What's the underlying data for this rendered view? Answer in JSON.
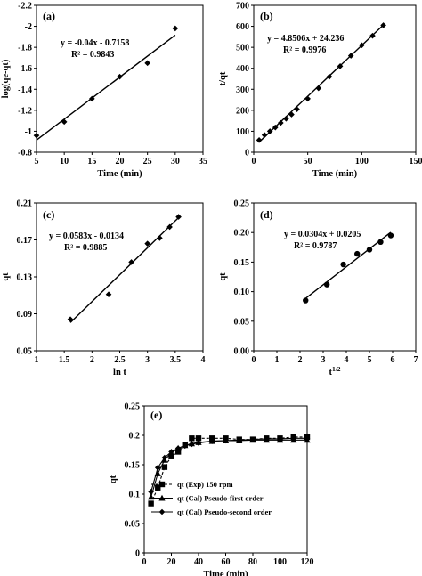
{
  "chart_data": [
    {
      "id": "a",
      "type": "scatter",
      "panel_label": "(a)",
      "xlabel": "Time (min)",
      "ylabel": "log(qe-qt)",
      "xlim": [
        5,
        35
      ],
      "ylim": [
        -0.8,
        -2.2
      ],
      "y_inverted": true,
      "xticks": [
        5,
        10,
        15,
        20,
        25,
        30,
        35
      ],
      "yticks": [
        -0.8,
        -1.0,
        -1.2,
        -1.4,
        -1.6,
        -1.8,
        -2.0,
        -2.2
      ],
      "ytick_labels": [
        "-0.8",
        "-1",
        "-1.2",
        "-1.4",
        "-1.6",
        "-1.8",
        "-2",
        "-2.2"
      ],
      "marker": "diamond",
      "x": [
        5,
        10,
        15,
        20,
        25,
        30
      ],
      "y": [
        -0.96,
        -1.09,
        -1.31,
        -1.52,
        -1.65,
        -1.98
      ],
      "fit": {
        "slope": -0.04,
        "intercept": -0.7158,
        "x_range": [
          5,
          30
        ]
      },
      "equation": "y = -0.04x - 0.7158",
      "r2": "R² = 0.9843"
    },
    {
      "id": "b",
      "type": "scatter",
      "panel_label": "(b)",
      "xlabel": "Time (min)",
      "ylabel": "t/qt",
      "xlim": [
        0,
        150
      ],
      "ylim": [
        0,
        700
      ],
      "xticks": [
        0,
        50,
        100,
        150
      ],
      "yticks": [
        0,
        100,
        200,
        300,
        400,
        500,
        600,
        700
      ],
      "marker": "diamond",
      "x": [
        5,
        10,
        15,
        20,
        25,
        30,
        35,
        40,
        50,
        60,
        70,
        80,
        90,
        100,
        110,
        120
      ],
      "y": [
        58,
        82,
        100,
        118,
        140,
        160,
        180,
        205,
        255,
        305,
        360,
        410,
        460,
        510,
        555,
        605
      ],
      "fit": {
        "slope": 4.8506,
        "intercept": 24.236,
        "x_range": [
          5,
          120
        ]
      },
      "equation": "y = 4.8506x + 24.236",
      "r2": "R² = 0.9976"
    },
    {
      "id": "c",
      "type": "scatter",
      "panel_label": "(c)",
      "xlabel": "ln t",
      "ylabel": "qt",
      "xlim": [
        1,
        4
      ],
      "ylim": [
        0.05,
        0.21
      ],
      "xticks": [
        1,
        1.5,
        2,
        2.5,
        3,
        3.5,
        4
      ],
      "yticks": [
        0.05,
        0.09,
        0.13,
        0.17,
        0.21
      ],
      "marker": "diamond",
      "x": [
        1.61,
        2.3,
        2.71,
        3.0,
        3.22,
        3.4,
        3.56
      ],
      "y": [
        0.084,
        0.111,
        0.146,
        0.166,
        0.172,
        0.184,
        0.195
      ],
      "fit": {
        "slope": 0.0583,
        "intercept": -0.0134,
        "x_range": [
          1.61,
          3.56
        ]
      },
      "equation": "y = 0.0583x - 0.0134",
      "r2": "R² = 0.9885"
    },
    {
      "id": "d",
      "type": "scatter",
      "panel_label": "(d)",
      "xlabel": "t",
      "xlabel_sup": "1/2",
      "ylabel": "qt",
      "xlim": [
        0,
        7
      ],
      "ylim": [
        0.0,
        0.25
      ],
      "xticks": [
        0,
        1,
        2,
        3,
        4,
        5,
        6,
        7
      ],
      "yticks": [
        0.0,
        0.05,
        0.1,
        0.15,
        0.2,
        0.25
      ],
      "ytick_labels": [
        "0.00",
        "0.05",
        "0.10",
        "0.15",
        "0.20",
        "0.25"
      ],
      "marker": "circle",
      "x": [
        2.24,
        3.16,
        3.87,
        4.47,
        5.0,
        5.48,
        5.92
      ],
      "y": [
        0.085,
        0.112,
        0.146,
        0.164,
        0.171,
        0.184,
        0.195
      ],
      "fit": {
        "slope": 0.0304,
        "intercept": 0.0205,
        "x_range": [
          2.24,
          5.92
        ]
      },
      "equation": "y = 0.0304x + 0.0205",
      "r2": "R² = 0.9787"
    },
    {
      "id": "e",
      "type": "line",
      "panel_label": "(e)",
      "xlabel": "Time (min)",
      "ylabel": "qt",
      "xlim": [
        0,
        120
      ],
      "ylim": [
        0,
        0.25
      ],
      "xticks": [
        0,
        20,
        40,
        60,
        80,
        100,
        120
      ],
      "yticks": [
        0,
        0.05,
        0.1,
        0.15,
        0.2,
        0.25
      ],
      "legend_position": "lower-center",
      "series": [
        {
          "name": "qt (Exp) 150 rpm",
          "marker": "square",
          "dashed": true,
          "x": [
            5,
            10,
            15,
            20,
            25,
            30,
            35,
            40,
            50,
            60,
            70,
            80,
            90,
            100,
            110,
            120
          ],
          "y": [
            0.084,
            0.111,
            0.146,
            0.164,
            0.172,
            0.184,
            0.195,
            0.195,
            0.195,
            0.195,
            0.193,
            0.193,
            0.195,
            0.195,
            0.197,
            0.197
          ]
        },
        {
          "name": "qt (Cal) Pseudo-first order",
          "marker": "triangle",
          "dashed": false,
          "x": [
            5,
            10,
            15,
            20,
            25,
            30,
            35,
            40,
            50,
            60,
            70,
            80,
            90,
            100,
            110,
            120
          ],
          "y": [
            0.095,
            0.135,
            0.158,
            0.17,
            0.178,
            0.183,
            0.186,
            0.188,
            0.19,
            0.191,
            0.191,
            0.192,
            0.192,
            0.192,
            0.192,
            0.192
          ]
        },
        {
          "name": "qt (Cal) Pseudo-second order",
          "marker": "diamond",
          "dashed": false,
          "x": [
            5,
            10,
            15,
            20,
            25,
            30,
            35,
            40,
            50,
            60,
            70,
            80,
            90,
            100,
            110,
            120
          ],
          "y": [
            0.104,
            0.145,
            0.162,
            0.172,
            0.178,
            0.182,
            0.185,
            0.187,
            0.19,
            0.191,
            0.192,
            0.193,
            0.194,
            0.194,
            0.195,
            0.195
          ]
        }
      ]
    }
  ]
}
